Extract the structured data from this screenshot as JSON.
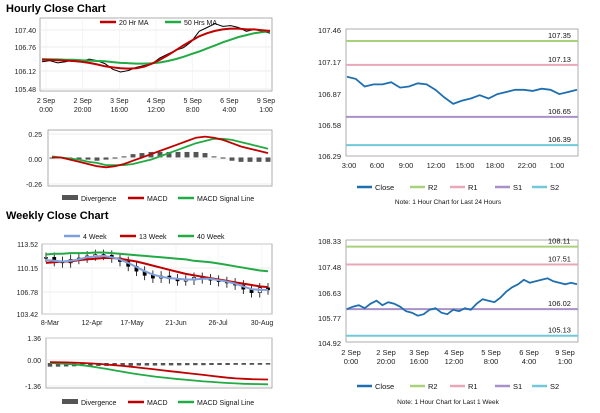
{
  "headers": {
    "hourly": "Hourly Close Chart",
    "weekly": "Weekly Close Chart"
  },
  "chart_data": [
    {
      "id": "hourly_price",
      "type": "line",
      "x_tick_labels": [
        [
          "2 Sep",
          "0:00"
        ],
        [
          "2 Sep",
          "20:00"
        ],
        [
          "3 Sep",
          "16:00"
        ],
        [
          "4 Sep",
          "12:00"
        ],
        [
          "5 Sep",
          "8:00"
        ],
        [
          "6 Sep",
          "4:00"
        ],
        [
          "9 Sep",
          "1:00"
        ]
      ],
      "y_tick_labels": [
        "107.40",
        "106.76",
        "106.12",
        "105.48"
      ],
      "ylim": [
        105.48,
        107.4
      ],
      "legend": [
        "20 Hr MA",
        "50 Hrs MA"
      ],
      "colors": {
        "price": "#000000",
        "ma20": "#c00000",
        "ma50": "#22aa44"
      },
      "x_count": 7,
      "price": [
        106.25,
        106.28,
        106.22,
        106.25,
        106.3,
        106.26,
        106.32,
        106.28,
        106.2,
        106.05,
        105.98,
        106.02,
        106.1,
        106.15,
        106.2,
        106.35,
        106.45,
        106.55,
        106.62,
        106.78,
        107.05,
        107.15,
        107.25,
        107.18,
        107.2,
        107.15,
        107.05,
        107.1,
        107.05,
        107.0
      ],
      "ma20": [
        106.3,
        106.3,
        106.29,
        106.28,
        106.27,
        106.25,
        106.22,
        106.18,
        106.13,
        106.1,
        106.08,
        106.07,
        106.08,
        106.12,
        106.2,
        106.3,
        106.42,
        106.55,
        106.68,
        106.8,
        106.92,
        107.0,
        107.06,
        107.1,
        107.12,
        107.12,
        107.1,
        107.1,
        107.08,
        107.06
      ],
      "ma50": [
        106.32,
        106.31,
        106.31,
        106.3,
        106.3,
        106.29,
        106.28,
        106.27,
        106.26,
        106.24,
        106.22,
        106.21,
        106.2,
        106.2,
        106.21,
        106.23,
        106.27,
        106.32,
        106.38,
        106.45,
        106.52,
        106.6,
        106.68,
        106.76,
        106.83,
        106.9,
        106.95,
        107.0,
        107.03,
        107.05
      ]
    },
    {
      "id": "hourly_macd",
      "type": "line",
      "y_tick_labels": [
        "0.25",
        "0.00",
        "-0.26"
      ],
      "ylim": [
        -0.26,
        0.25
      ],
      "legend": [
        "Divergence",
        "MACD",
        "MACD Signal Line"
      ],
      "colors": {
        "divergence": "#555555",
        "macd": "#c00000",
        "signal": "#22aa44"
      },
      "macd": [
        0.0,
        0.0,
        -0.02,
        -0.04,
        -0.06,
        -0.08,
        -0.09,
        -0.08,
        -0.06,
        -0.03,
        0.0,
        0.03,
        0.06,
        0.09,
        0.12,
        0.15,
        0.18,
        0.19,
        0.18,
        0.16,
        0.13,
        0.1,
        0.08,
        0.06,
        0.04
      ],
      "signal": [
        0.01,
        0.0,
        -0.01,
        -0.02,
        -0.04,
        -0.05,
        -0.07,
        -0.07,
        -0.07,
        -0.06,
        -0.04,
        -0.02,
        0.01,
        0.04,
        0.07,
        0.1,
        0.13,
        0.15,
        0.17,
        0.17,
        0.16,
        0.14,
        0.12,
        0.1,
        0.08
      ],
      "divergence": [
        -0.01,
        0.0,
        -0.01,
        -0.02,
        -0.02,
        -0.03,
        -0.02,
        -0.01,
        0.01,
        0.03,
        0.04,
        0.05,
        0.05,
        0.05,
        0.05,
        0.05,
        0.05,
        0.04,
        0.01,
        -0.01,
        -0.03,
        -0.04,
        -0.04,
        -0.04,
        -0.04
      ]
    },
    {
      "id": "hourly_levels",
      "type": "line",
      "x_tick_labels": [
        "3:00",
        "6:00",
        "9:00",
        "12:00",
        "15:00",
        "18:00",
        "22:00",
        "1:00"
      ],
      "y_tick_labels": [
        "107.46",
        "107.17",
        "106.87",
        "106.58",
        "106.29"
      ],
      "ylim": [
        106.29,
        107.46
      ],
      "close": [
        107.02,
        107.0,
        106.93,
        106.95,
        106.95,
        106.97,
        106.92,
        106.93,
        106.96,
        106.95,
        106.9,
        106.83,
        106.77,
        106.8,
        106.82,
        106.85,
        106.82,
        106.86,
        106.88,
        106.9,
        106.9,
        106.89,
        106.91,
        106.9,
        106.86,
        106.88,
        106.9
      ],
      "levels": [
        {
          "name": "R2",
          "value": 107.35,
          "label": "107.35",
          "color": "#a9d17b"
        },
        {
          "name": "R1",
          "value": 107.13,
          "label": "107.13",
          "color": "#e8a8b8"
        },
        {
          "name": "S1",
          "value": 106.65,
          "label": "106.65",
          "color": "#a890c8"
        },
        {
          "name": "S2",
          "value": 106.39,
          "label": "106.39",
          "color": "#70c8d8"
        }
      ],
      "legend": [
        "Close",
        "R2",
        "R1",
        "S1",
        "S2"
      ],
      "close_color": "#1f6fb0",
      "note": "Note: 1 Hour Chart for Last 24 Hours"
    },
    {
      "id": "weekly_price",
      "type": "line",
      "x_tick_labels": [
        "8-Mar",
        "12-Apr",
        "17-May",
        "21-Jun",
        "26-Jul",
        "30-Aug"
      ],
      "y_tick_labels": [
        "113.52",
        "110.15",
        "106.78",
        "103.42"
      ],
      "ylim": [
        103.42,
        113.52
      ],
      "legend": [
        "4 Week",
        "13 Week",
        "40 Week"
      ],
      "colors": {
        "wk4": "#7fa0dc",
        "wk13": "#c00000",
        "wk40": "#22aa44",
        "candle": "#000000"
      },
      "close": [
        111.6,
        111.0,
        110.8,
        111.3,
        111.5,
        111.8,
        112.0,
        111.9,
        111.5,
        111.0,
        110.3,
        109.6,
        109.0,
        108.6,
        108.9,
        108.5,
        108.2,
        108.3,
        108.7,
        108.5,
        108.3,
        108.1,
        107.9,
        107.6,
        107.0,
        106.5,
        107.2,
        106.9
      ],
      "wk4": [
        111.2,
        111.1,
        111.0,
        111.1,
        111.3,
        111.6,
        111.7,
        111.8,
        111.6,
        111.3,
        110.8,
        110.2,
        109.6,
        109.1,
        108.8,
        108.6,
        108.5,
        108.4,
        108.4,
        108.5,
        108.5,
        108.3,
        108.1,
        107.8,
        107.4,
        107.0,
        106.9,
        106.9
      ],
      "wk13": [
        110.8,
        110.9,
        111.0,
        111.0,
        111.2,
        111.3,
        111.4,
        111.5,
        111.5,
        111.4,
        111.2,
        111.0,
        110.7,
        110.4,
        110.1,
        109.8,
        109.5,
        109.2,
        109.0,
        108.8,
        108.6,
        108.4,
        108.2,
        108.0,
        107.8,
        107.6,
        107.4,
        107.3
      ],
      "wk40": [
        112.0,
        112.1,
        112.1,
        112.2,
        112.2,
        112.2,
        112.3,
        112.3,
        112.2,
        112.1,
        112.0,
        111.9,
        111.8,
        111.7,
        111.6,
        111.5,
        111.4,
        111.3,
        111.1,
        111.0,
        110.9,
        110.7,
        110.5,
        110.3,
        110.1,
        109.9,
        109.7,
        109.6
      ]
    },
    {
      "id": "weekly_macd",
      "type": "line",
      "y_tick_labels": [
        "1.36",
        "0.00",
        "-1.36"
      ],
      "ylim": [
        -1.36,
        1.36
      ],
      "legend": [
        "Divergence",
        "MACD",
        "MACD Signal Line"
      ],
      "colors": {
        "divergence": "#555555",
        "macd": "#c00000",
        "signal": "#22aa44"
      },
      "macd": [
        0.05,
        0.04,
        0.03,
        0.02,
        0.0,
        -0.02,
        -0.05,
        -0.08,
        -0.12,
        -0.16,
        -0.2,
        -0.25,
        -0.3,
        -0.35,
        -0.4,
        -0.45,
        -0.5,
        -0.55,
        -0.6,
        -0.65,
        -0.7,
        -0.75,
        -0.8,
        -0.84,
        -0.86,
        -0.88,
        -0.89,
        -0.9
      ],
      "signal": [
        0.0,
        -0.02,
        -0.05,
        -0.08,
        -0.12,
        -0.18,
        -0.25,
        -0.32,
        -0.4,
        -0.48,
        -0.55,
        -0.62,
        -0.68,
        -0.74,
        -0.79,
        -0.84,
        -0.88,
        -0.92,
        -0.96,
        -1.0,
        -1.03,
        -1.06,
        -1.09,
        -1.11,
        -1.13,
        -1.14,
        -1.15,
        -1.16
      ],
      "divergence": [
        -0.2,
        -0.2,
        -0.19,
        -0.18,
        -0.17,
        -0.17,
        -0.16,
        -0.16,
        -0.15,
        -0.15,
        -0.15,
        -0.14,
        -0.14,
        -0.14,
        -0.13,
        -0.13,
        -0.13,
        -0.12,
        -0.12,
        -0.12,
        -0.11,
        -0.11,
        -0.11,
        -0.1,
        -0.1,
        -0.1,
        -0.1,
        -0.09
      ]
    },
    {
      "id": "weekly_levels",
      "type": "line",
      "x_tick_labels": [
        [
          "2 Sep",
          "0:00"
        ],
        [
          "2 Sep",
          "20:00"
        ],
        [
          "3 Sep",
          "16:00"
        ],
        [
          "4 Sep",
          "12:00"
        ],
        [
          "5 Sep",
          "8:00"
        ],
        [
          "6 Sep",
          "4:00"
        ],
        [
          "9 Sep",
          "1:00"
        ]
      ],
      "y_tick_labels": [
        "108.33",
        "107.48",
        "106.63",
        "105.77",
        "104.92"
      ],
      "ylim": [
        104.92,
        108.33
      ],
      "close": [
        106.02,
        106.1,
        106.15,
        106.05,
        106.2,
        106.3,
        106.15,
        106.25,
        106.2,
        106.1,
        105.95,
        105.9,
        105.8,
        105.85,
        106.0,
        106.05,
        105.9,
        105.85,
        106.0,
        105.95,
        106.05,
        106.0,
        106.2,
        106.35,
        106.3,
        106.25,
        106.4,
        106.6,
        106.75,
        106.85,
        107.0,
        106.9,
        106.95,
        107.0,
        107.05,
        106.95,
        106.9,
        106.85,
        106.9,
        106.85
      ],
      "levels": [
        {
          "name": "R2",
          "value": 108.11,
          "label": "108.11",
          "color": "#a9d17b"
        },
        {
          "name": "R1",
          "value": 107.51,
          "label": "107.51",
          "color": "#e8a8b8"
        },
        {
          "name": "S1",
          "value": 106.02,
          "label": "106.02",
          "color": "#a890c8"
        },
        {
          "name": "S2",
          "value": 105.13,
          "label": "105.13",
          "color": "#70c8d8"
        }
      ],
      "legend": [
        "Close",
        "R2",
        "R1",
        "S1",
        "S2"
      ],
      "close_color": "#1f6fb0",
      "note": "Note: 1 Hour Chart for Last 1 Week"
    }
  ]
}
